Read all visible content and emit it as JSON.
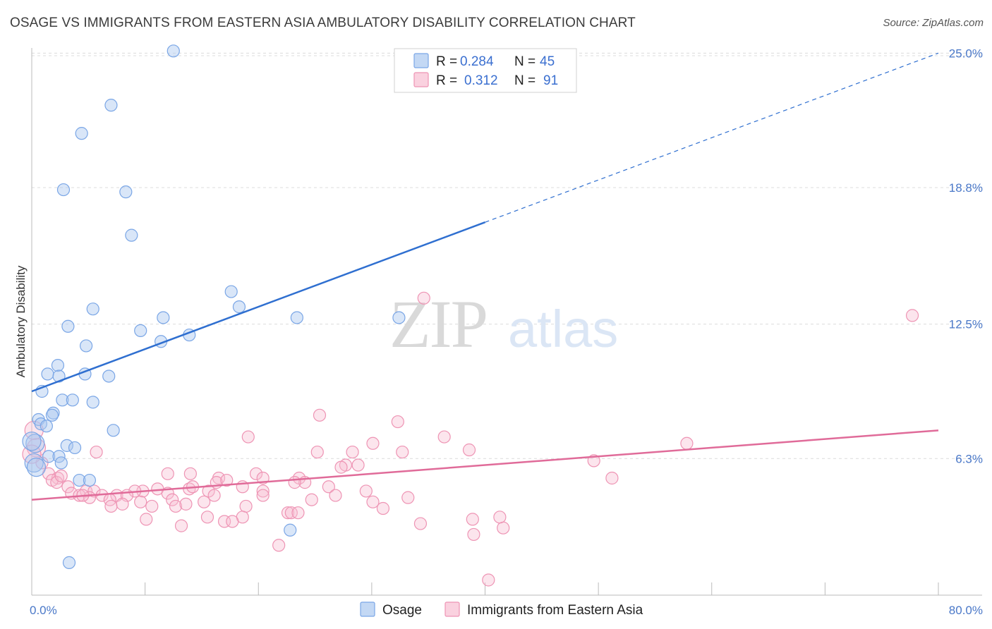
{
  "title": "OSAGE VS IMMIGRANTS FROM EASTERN ASIA AMBULATORY DISABILITY CORRELATION CHART",
  "source": "Source: ZipAtlas.com",
  "watermark": {
    "zip": "ZIP",
    "atlas": "atlas"
  },
  "colors": {
    "osage": "#7aa6e6",
    "osage_fill": "rgba(170,200,240,0.45)",
    "osage_line": "#2f6fd0",
    "asia": "#ee94b4",
    "asia_fill": "rgba(248,190,210,0.40)",
    "asia_line": "#e06b99",
    "tick_text": "#4a78c8",
    "grid": "#dcdcdc"
  },
  "legend": {
    "rows": [
      {
        "r_label": "R =",
        "r_value": "0.284",
        "n_label": "N =",
        "n_value": "45"
      },
      {
        "r_label": "R =",
        "r_value": "0.312",
        "n_label": "N =",
        "n_value": "91"
      }
    ]
  },
  "chart_data": {
    "type": "scatter",
    "title": "OSAGE VS IMMIGRANTS FROM EASTERN ASIA AMBULATORY DISABILITY CORRELATION CHART",
    "xlabel": "",
    "ylabel": "Ambulatory Disability",
    "xlim": [
      0,
      80
    ],
    "ylim": [
      0,
      25.5
    ],
    "x_tick_labels": [
      "0.0%",
      "80.0%"
    ],
    "y_ticks": [
      6.3,
      12.5,
      18.8,
      25.0
    ],
    "y_tick_labels": [
      "6.3%",
      "12.5%",
      "18.8%",
      "25.0%"
    ],
    "grid": "horizontal dashed",
    "legend_position": "top-center",
    "series": [
      {
        "name": "Osage",
        "trend": {
          "x0": 0,
          "y0": 9.4,
          "x1": 40,
          "y1": 17.2,
          "dashed_to_x": 80
        },
        "points": [
          [
            12.5,
            25.1
          ],
          [
            7.0,
            22.6
          ],
          [
            4.4,
            21.3
          ],
          [
            2.8,
            18.7
          ],
          [
            8.3,
            18.6
          ],
          [
            8.8,
            16.6
          ],
          [
            17.6,
            14.0
          ],
          [
            18.3,
            13.3
          ],
          [
            5.4,
            13.2
          ],
          [
            11.6,
            12.8
          ],
          [
            23.4,
            12.8
          ],
          [
            32.4,
            12.8
          ],
          [
            3.2,
            12.4
          ],
          [
            9.6,
            12.2
          ],
          [
            13.9,
            12.0
          ],
          [
            11.4,
            11.7
          ],
          [
            4.8,
            11.5
          ],
          [
            2.3,
            10.6
          ],
          [
            1.4,
            10.2
          ],
          [
            2.4,
            10.1
          ],
          [
            4.7,
            10.2
          ],
          [
            6.8,
            10.1
          ],
          [
            0.9,
            9.4
          ],
          [
            2.7,
            9.0
          ],
          [
            3.6,
            9.0
          ],
          [
            5.4,
            8.9
          ],
          [
            1.9,
            8.4
          ],
          [
            1.8,
            8.3
          ],
          [
            0.6,
            8.1
          ],
          [
            0.8,
            7.9
          ],
          [
            1.3,
            7.8
          ],
          [
            7.2,
            7.6
          ],
          [
            0.3,
            7.0
          ],
          [
            3.1,
            6.9
          ],
          [
            3.8,
            6.8
          ],
          [
            1.5,
            6.4
          ],
          [
            2.4,
            6.4
          ],
          [
            2.6,
            6.1
          ],
          [
            0.2,
            6.1
          ],
          [
            4.2,
            5.3
          ],
          [
            5.1,
            5.3
          ],
          [
            22.8,
            3.0
          ],
          [
            3.3,
            1.5
          ],
          [
            0.0,
            7.1
          ],
          [
            0.4,
            5.9
          ]
        ]
      },
      {
        "name": "Immigrants from Eastern Asia",
        "trend": {
          "x0": 0,
          "y0": 4.4,
          "x1": 80,
          "y1": 7.6
        },
        "points": [
          [
            34.6,
            13.7
          ],
          [
            77.7,
            12.9
          ],
          [
            25.4,
            8.3
          ],
          [
            32.3,
            8.0
          ],
          [
            0.2,
            7.6
          ],
          [
            19.1,
            7.3
          ],
          [
            36.4,
            7.3
          ],
          [
            57.8,
            7.0
          ],
          [
            30.1,
            7.0
          ],
          [
            38.6,
            6.7
          ],
          [
            25.2,
            6.6
          ],
          [
            28.3,
            6.6
          ],
          [
            32.7,
            6.6
          ],
          [
            5.7,
            6.6
          ],
          [
            0.4,
            6.8
          ],
          [
            49.6,
            6.2
          ],
          [
            0.9,
            6.1
          ],
          [
            27.7,
            6.0
          ],
          [
            28.8,
            6.0
          ],
          [
            27.3,
            5.9
          ],
          [
            12.0,
            5.6
          ],
          [
            14.0,
            5.6
          ],
          [
            19.8,
            5.6
          ],
          [
            1.5,
            5.6
          ],
          [
            2.3,
            5.4
          ],
          [
            16.5,
            5.4
          ],
          [
            23.6,
            5.4
          ],
          [
            20.4,
            5.4
          ],
          [
            24.1,
            5.2
          ],
          [
            23.2,
            5.2
          ],
          [
            26.2,
            5.0
          ],
          [
            16.3,
            5.2
          ],
          [
            17.2,
            5.3
          ],
          [
            18.6,
            5.0
          ],
          [
            1.8,
            5.3
          ],
          [
            2.2,
            5.2
          ],
          [
            3.2,
            5.0
          ],
          [
            13.9,
            4.9
          ],
          [
            9.8,
            4.8
          ],
          [
            9.1,
            4.8
          ],
          [
            4.8,
            4.8
          ],
          [
            5.5,
            4.8
          ],
          [
            11.1,
            4.9
          ],
          [
            14.2,
            5.0
          ],
          [
            15.6,
            4.8
          ],
          [
            20.4,
            4.8
          ],
          [
            29.5,
            4.8
          ],
          [
            3.5,
            4.7
          ],
          [
            4.2,
            4.6
          ],
          [
            6.2,
            4.6
          ],
          [
            7.5,
            4.6
          ],
          [
            8.4,
            4.6
          ],
          [
            12.0,
            4.7
          ],
          [
            16.1,
            4.6
          ],
          [
            20.4,
            4.6
          ],
          [
            26.8,
            4.6
          ],
          [
            33.2,
            4.5
          ],
          [
            5.1,
            4.5
          ],
          [
            4.5,
            4.6
          ],
          [
            6.9,
            4.4
          ],
          [
            9.6,
            4.3
          ],
          [
            12.4,
            4.4
          ],
          [
            15.2,
            4.3
          ],
          [
            24.7,
            4.4
          ],
          [
            30.1,
            4.3
          ],
          [
            7.0,
            4.1
          ],
          [
            8.0,
            4.2
          ],
          [
            10.6,
            4.1
          ],
          [
            12.7,
            4.1
          ],
          [
            13.6,
            4.2
          ],
          [
            18.9,
            4.1
          ],
          [
            31.0,
            4.0
          ],
          [
            22.6,
            3.8
          ],
          [
            22.9,
            3.8
          ],
          [
            23.5,
            3.8
          ],
          [
            15.5,
            3.6
          ],
          [
            18.6,
            3.6
          ],
          [
            10.1,
            3.5
          ],
          [
            17.0,
            3.4
          ],
          [
            17.7,
            3.4
          ],
          [
            34.3,
            3.3
          ],
          [
            38.9,
            3.5
          ],
          [
            13.2,
            3.2
          ],
          [
            41.6,
            3.1
          ],
          [
            51.2,
            5.4
          ],
          [
            39.0,
            2.8
          ],
          [
            21.8,
            2.3
          ],
          [
            40.3,
            0.7
          ],
          [
            41.3,
            3.6
          ],
          [
            2.6,
            5.5
          ],
          [
            0.0,
            6.5
          ]
        ]
      }
    ]
  },
  "bottom_legend": [
    {
      "label": "Osage"
    },
    {
      "label": "Immigrants from Eastern Asia"
    }
  ]
}
